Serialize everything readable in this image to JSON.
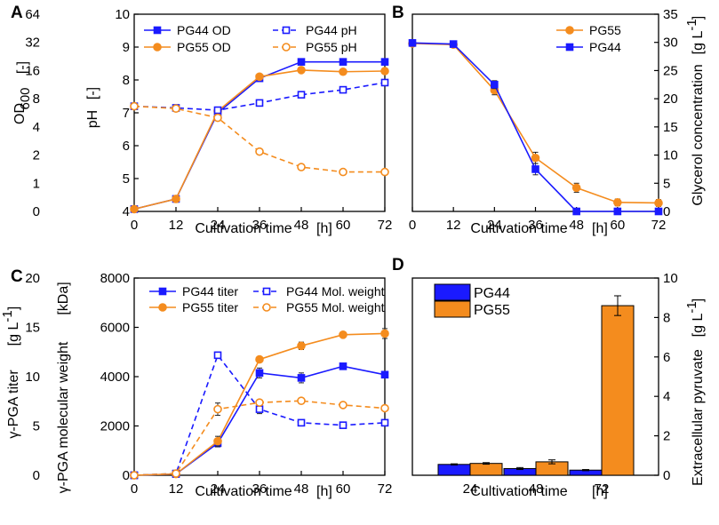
{
  "colors": {
    "blue": "#1a1aff",
    "orange": "#f48c1e"
  },
  "chart_data": [
    {
      "panel": "A",
      "type": "line",
      "x": [
        0,
        12,
        24,
        36,
        48,
        60,
        72
      ],
      "x_ticks": [
        "0",
        "12",
        "24",
        "36",
        "48",
        "60",
        "72"
      ],
      "xlabel": "Cultivation time",
      "xunit": "[h]",
      "y_outer_label": "OD",
      "y_outer_sub": "600",
      "y_outer_unit": "[-]",
      "y_outer_ticks": [
        "0",
        "1",
        "2",
        "4",
        "8",
        "16",
        "32",
        "64"
      ],
      "ylabel": "pH",
      "yunit": "[-]",
      "ylim": [
        4,
        10
      ],
      "y_ticks": [
        "4",
        "5",
        "6",
        "7",
        "8",
        "9",
        "10"
      ],
      "series": [
        {
          "name": "PG44 OD",
          "style": "solid-square",
          "color": "#1a1aff",
          "values": [
            4.07,
            4.38,
            7.0,
            8.05,
            8.55,
            8.55,
            8.55
          ]
        },
        {
          "name": "PG55 OD",
          "style": "solid-circle",
          "color": "#f48c1e",
          "values": [
            4.07,
            4.38,
            7.05,
            8.1,
            8.3,
            8.25,
            8.27
          ]
        },
        {
          "name": "PG44 pH",
          "style": "dashed-square",
          "color": "#1a1aff",
          "values": [
            7.2,
            7.15,
            7.08,
            7.3,
            7.55,
            7.7,
            7.92
          ]
        },
        {
          "name": "PG55 pH",
          "style": "dashed-circle",
          "color": "#f48c1e",
          "values": [
            7.2,
            7.13,
            6.85,
            5.82,
            5.35,
            5.2,
            5.2
          ]
        }
      ]
    },
    {
      "panel": "B",
      "type": "line",
      "x": [
        0,
        12,
        24,
        36,
        48,
        60,
        72
      ],
      "x_ticks": [
        "0",
        "12",
        "24",
        "36",
        "48",
        "60",
        "72"
      ],
      "xlabel": "Cultivation time",
      "xunit": "[h]",
      "ylabel": "Glycerol concentration",
      "yunit": "[g L",
      "yunit_sup": "-1",
      "yunit_close": "]",
      "ylim": [
        0,
        35
      ],
      "y_ticks": [
        "0",
        "5",
        "10",
        "15",
        "20",
        "25",
        "30",
        "35"
      ],
      "series": [
        {
          "name": "PG55",
          "style": "solid-circle",
          "color": "#f48c1e",
          "values": [
            29.8,
            29.6,
            21.5,
            9.5,
            4.2,
            1.6,
            1.5
          ],
          "errors": [
            0.4,
            0.4,
            0.8,
            1.0,
            0.8,
            0.6,
            0.6
          ]
        },
        {
          "name": "PG44",
          "style": "solid-square",
          "color": "#1a1aff",
          "values": [
            29.9,
            29.7,
            22.5,
            7.5,
            0.0,
            0.0,
            0.0
          ],
          "errors": [
            0.4,
            0.4,
            0.7,
            1.0,
            0,
            0,
            0
          ]
        }
      ]
    },
    {
      "panel": "C",
      "type": "line",
      "x": [
        0,
        12,
        24,
        36,
        48,
        60,
        72
      ],
      "x_ticks": [
        "0",
        "12",
        "24",
        "36",
        "48",
        "60",
        "72"
      ],
      "xlabel": "Cultivation time",
      "xunit": "[h]",
      "y_outer_label": "γ-PGA titer",
      "y_outer_unit": "[g L",
      "y_outer_unit_sup": "-1",
      "y_outer_unit_close": "]",
      "y_outer_ticks": [
        "0",
        "5",
        "10",
        "15",
        "20"
      ],
      "ylabel": "γ-PGA molecular weight",
      "yunit": "[kDa]",
      "ylim": [
        0,
        8000
      ],
      "y_ticks": [
        "0",
        "2000",
        "4000",
        "6000",
        "8000"
      ],
      "series": [
        {
          "name": "PG44 titer",
          "style": "solid-square",
          "color": "#1a1aff",
          "values": [
            0,
            50,
            1300,
            4150,
            3950,
            4420,
            4080
          ],
          "errors": [
            0,
            0,
            150,
            200,
            200,
            100,
            100
          ]
        },
        {
          "name": "PG55 titer",
          "style": "solid-circle",
          "color": "#f48c1e",
          "values": [
            0,
            50,
            1380,
            4700,
            5250,
            5700,
            5750
          ],
          "errors": [
            0,
            0,
            200,
            100,
            150,
            100,
            200
          ]
        },
        {
          "name": "PG44 Mol. weight",
          "style": "dashed-square",
          "color": "#1a1aff",
          "values": [
            0,
            70,
            4870,
            2680,
            2130,
            2030,
            2130
          ],
          "errors": [
            0,
            0,
            0,
            180,
            0,
            0,
            80
          ]
        },
        {
          "name": "PG55 Mol. weight",
          "style": "dashed-circle",
          "color": "#f48c1e",
          "values": [
            0,
            70,
            2680,
            2950,
            3020,
            2850,
            2720
          ],
          "errors": [
            0,
            0,
            250,
            0,
            0,
            0,
            0
          ]
        }
      ]
    },
    {
      "panel": "D",
      "type": "bar",
      "categories": [
        "24",
        "48",
        "72"
      ],
      "xlabel": "Cultivation time",
      "xunit": "[h]",
      "ylabel": "Extracellular pyruvate",
      "yunit": "[g L",
      "yunit_sup": "-1",
      "yunit_close": "]",
      "ylim": [
        0,
        10
      ],
      "y_ticks": [
        "0",
        "2",
        "4",
        "6",
        "8",
        "10"
      ],
      "series": [
        {
          "name": "PG44",
          "color": "#1a1aff",
          "values": [
            0.55,
            0.34,
            0.26
          ],
          "errors": [
            0.03,
            0.05,
            0.03
          ]
        },
        {
          "name": "PG55",
          "color": "#f48c1e",
          "values": [
            0.6,
            0.68,
            8.6
          ],
          "errors": [
            0.04,
            0.1,
            0.5
          ]
        }
      ]
    }
  ]
}
